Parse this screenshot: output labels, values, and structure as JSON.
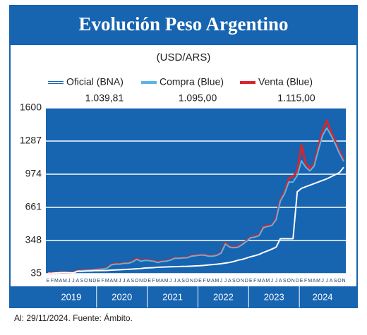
{
  "chart_data": {
    "type": "line",
    "title": "Evolución Peso Argentino",
    "subtitle": "(USD/ARS)",
    "footer": "Al: 29/11/2024. Fuente: Ámbito.",
    "categories": [
      "E",
      "F",
      "M",
      "A",
      "M",
      "J",
      "J",
      "A",
      "S",
      "O",
      "N",
      "D",
      "E",
      "F",
      "M",
      "A",
      "M",
      "J",
      "J",
      "A",
      "S",
      "O",
      "N",
      "D",
      "E",
      "F",
      "M",
      "A",
      "M",
      "J",
      "J",
      "A",
      "S",
      "O",
      "N",
      "D",
      "E",
      "F",
      "M",
      "A",
      "M",
      "J",
      "J",
      "A",
      "S",
      "O",
      "N",
      "D",
      "E",
      "F",
      "M",
      "A",
      "M",
      "J",
      "J",
      "A",
      "S",
      "O",
      "N",
      "D",
      "E",
      "F",
      "M",
      "A",
      "M",
      "J",
      "J",
      "A",
      "S",
      "O",
      "N"
    ],
    "year_labels": [
      "2019",
      "2020",
      "2021",
      "2022",
      "2023",
      "2024"
    ],
    "ylim": [
      35,
      1600
    ],
    "yticks": [
      35,
      348,
      661,
      974,
      1287,
      1600
    ],
    "grid": true,
    "series": [
      {
        "name": "Oficial (BNA)",
        "color": "#ffffff",
        "latest_label": "1.039,81",
        "values": [
          38,
          39,
          42,
          44,
          45,
          43,
          42,
          58,
          57,
          60,
          60,
          63,
          63,
          64,
          65,
          68,
          70,
          72,
          74,
          76,
          78,
          81,
          83,
          88,
          90,
          92,
          95,
          97,
          98,
          100,
          101,
          102,
          103,
          104,
          106,
          108,
          110,
          113,
          117,
          121,
          124,
          129,
          135,
          141,
          150,
          162,
          170,
          182,
          195,
          205,
          217,
          235,
          250,
          267,
          285,
          365,
          365,
          365,
          365,
          808,
          840,
          855,
          870,
          885,
          900,
          915,
          930,
          950,
          970,
          990,
          1039.81
        ]
      },
      {
        "name": "Compra (Blue)",
        "color": "#5ab4e5",
        "latest_label": "1.095,00",
        "values": [
          38,
          39,
          42,
          44,
          45,
          43,
          44,
          60,
          63,
          65,
          68,
          70,
          76,
          78,
          86,
          118,
          125,
          125,
          132,
          132,
          145,
          170,
          152,
          160,
          157,
          152,
          140,
          150,
          152,
          163,
          180,
          180,
          183,
          185,
          200,
          205,
          210,
          210,
          200,
          200,
          208,
          230,
          315,
          285,
          280,
          285,
          310,
          340,
          375,
          380,
          395,
          470,
          480,
          490,
          545,
          720,
          790,
          900,
          900,
          960,
          1100,
          1040,
          1005,
          1050,
          1200,
          1340,
          1410,
          1340,
          1260,
          1170,
          1095
        ]
      },
      {
        "name": "Venta (Blue)",
        "color": "#d7262b",
        "latest_label": "1.115,00",
        "values": [
          39,
          40,
          43,
          45,
          46,
          44,
          45,
          62,
          66,
          68,
          70,
          73,
          79,
          81,
          89,
          122,
          129,
          129,
          136,
          137,
          150,
          178,
          158,
          166,
          161,
          156,
          144,
          154,
          156,
          167,
          184,
          183,
          187,
          189,
          204,
          209,
          214,
          214,
          204,
          204,
          212,
          234,
          325,
          290,
          287,
          293,
          315,
          346,
          382,
          387,
          400,
          480,
          488,
          495,
          555,
          735,
          805,
          935,
          950,
          1000,
          1250,
          1075,
          1025,
          1070,
          1235,
          1380,
          1480,
          1375,
          1285,
          1190,
          1115
        ]
      }
    ]
  }
}
